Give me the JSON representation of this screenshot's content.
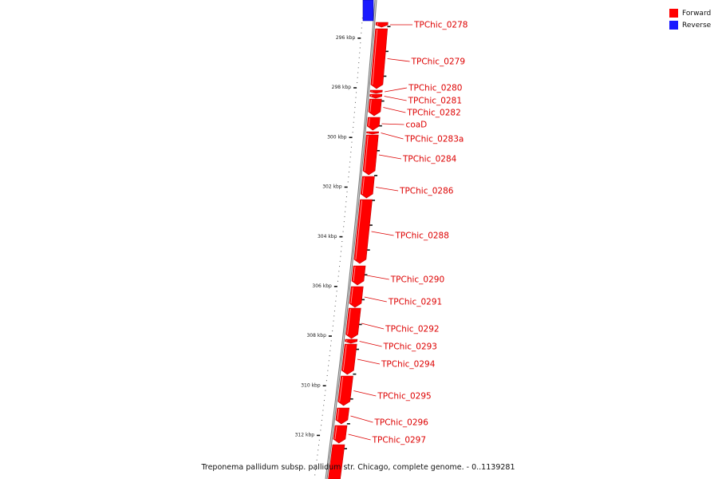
{
  "legend": {
    "items": [
      {
        "label": "Forward",
        "color": "#ff0000"
      },
      {
        "label": "Reverse",
        "color": "#1a1aff"
      }
    ]
  },
  "ruler": {
    "unit": "kbp",
    "ticks": [
      {
        "kbp": 296,
        "label": "296 kbp"
      },
      {
        "kbp": 298,
        "label": "298 kbp"
      },
      {
        "kbp": 300,
        "label": "300 kbp"
      },
      {
        "kbp": 302,
        "label": "302 kbp"
      },
      {
        "kbp": 304,
        "label": "304 kbp"
      },
      {
        "kbp": 306,
        "label": "306 kbp"
      },
      {
        "kbp": 308,
        "label": "308 kbp"
      },
      {
        "kbp": 310,
        "label": "310 kbp"
      },
      {
        "kbp": 312,
        "label": "312 kbp"
      }
    ]
  },
  "genes": [
    {
      "name": "TPChic_0278",
      "strand": "+"
    },
    {
      "name": "TPChic_0279",
      "strand": "+"
    },
    {
      "name": "TPChic_0280",
      "strand": "+"
    },
    {
      "name": "TPChic_0281",
      "strand": "+"
    },
    {
      "name": "TPChic_0282",
      "strand": "+"
    },
    {
      "name": "coaD",
      "strand": "+"
    },
    {
      "name": "TPChic_0283a",
      "strand": "+"
    },
    {
      "name": "TPChic_0284",
      "strand": "+"
    },
    {
      "name": "TPChic_0286",
      "strand": "+"
    },
    {
      "name": "TPChic_0288",
      "strand": "+"
    },
    {
      "name": "TPChic_0290",
      "strand": "+"
    },
    {
      "name": "TPChic_0291",
      "strand": "+"
    },
    {
      "name": "TPChic_0292",
      "strand": "+"
    },
    {
      "name": "TPChic_0293",
      "strand": "+"
    },
    {
      "name": "TPChic_0294",
      "strand": "+"
    },
    {
      "name": "TPChic_0295",
      "strand": "+"
    },
    {
      "name": "TPChic_0296",
      "strand": "+"
    },
    {
      "name": "TPChic_0297",
      "strand": "+"
    }
  ],
  "footer": "Treponema pallidum subsp. pallidum str. Chicago, complete genome. - 0..1139281"
}
